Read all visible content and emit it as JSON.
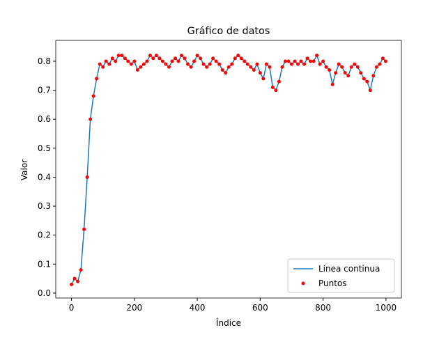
{
  "chart_data": {
    "type": "line",
    "title": "Gráfico de datos",
    "xlabel": "Índice",
    "ylabel": "Valor",
    "x": [
      0,
      10,
      20,
      30,
      40,
      50,
      60,
      70,
      80,
      90,
      100,
      110,
      120,
      130,
      140,
      150,
      160,
      170,
      180,
      190,
      200,
      210,
      220,
      230,
      240,
      250,
      260,
      270,
      280,
      290,
      300,
      310,
      320,
      330,
      340,
      350,
      360,
      370,
      380,
      390,
      400,
      410,
      420,
      430,
      440,
      450,
      460,
      470,
      480,
      490,
      500,
      510,
      520,
      530,
      540,
      550,
      560,
      570,
      580,
      590,
      600,
      610,
      620,
      630,
      640,
      650,
      660,
      670,
      680,
      690,
      700,
      710,
      720,
      730,
      740,
      750,
      760,
      770,
      780,
      790,
      800,
      810,
      820,
      830,
      840,
      850,
      860,
      870,
      880,
      890,
      900,
      910,
      920,
      930,
      940,
      950,
      960,
      970,
      980,
      990,
      999
    ],
    "series": [
      {
        "name": "Línea continua",
        "type": "line",
        "color": "#1f77b4",
        "values": [
          0.03,
          0.05,
          0.04,
          0.08,
          0.22,
          0.4,
          0.6,
          0.68,
          0.74,
          0.79,
          0.78,
          0.8,
          0.79,
          0.81,
          0.8,
          0.82,
          0.82,
          0.81,
          0.8,
          0.79,
          0.8,
          0.77,
          0.78,
          0.79,
          0.8,
          0.82,
          0.81,
          0.82,
          0.81,
          0.8,
          0.79,
          0.78,
          0.8,
          0.81,
          0.8,
          0.82,
          0.81,
          0.79,
          0.78,
          0.8,
          0.82,
          0.81,
          0.79,
          0.78,
          0.79,
          0.81,
          0.8,
          0.79,
          0.77,
          0.76,
          0.78,
          0.79,
          0.81,
          0.82,
          0.81,
          0.8,
          0.79,
          0.78,
          0.77,
          0.79,
          0.76,
          0.74,
          0.79,
          0.78,
          0.71,
          0.7,
          0.73,
          0.78,
          0.8,
          0.8,
          0.79,
          0.8,
          0.79,
          0.8,
          0.79,
          0.81,
          0.8,
          0.8,
          0.82,
          0.79,
          0.8,
          0.78,
          0.77,
          0.72,
          0.76,
          0.79,
          0.78,
          0.76,
          0.75,
          0.78,
          0.79,
          0.78,
          0.76,
          0.74,
          0.73,
          0.7,
          0.75,
          0.78,
          0.79,
          0.81,
          0.8
        ]
      },
      {
        "name": "Puntos",
        "type": "scatter",
        "color": "#ff0000",
        "values": [
          0.03,
          0.05,
          0.04,
          0.08,
          0.22,
          0.4,
          0.6,
          0.68,
          0.74,
          0.79,
          0.78,
          0.8,
          0.79,
          0.81,
          0.8,
          0.82,
          0.82,
          0.81,
          0.8,
          0.79,
          0.8,
          0.77,
          0.78,
          0.79,
          0.8,
          0.82,
          0.81,
          0.82,
          0.81,
          0.8,
          0.79,
          0.78,
          0.8,
          0.81,
          0.8,
          0.82,
          0.81,
          0.79,
          0.78,
          0.8,
          0.82,
          0.81,
          0.79,
          0.78,
          0.79,
          0.81,
          0.8,
          0.79,
          0.77,
          0.76,
          0.78,
          0.79,
          0.81,
          0.82,
          0.81,
          0.8,
          0.79,
          0.78,
          0.77,
          0.79,
          0.76,
          0.74,
          0.79,
          0.78,
          0.71,
          0.7,
          0.73,
          0.78,
          0.8,
          0.8,
          0.79,
          0.8,
          0.79,
          0.8,
          0.79,
          0.81,
          0.8,
          0.8,
          0.82,
          0.79,
          0.8,
          0.78,
          0.77,
          0.72,
          0.76,
          0.79,
          0.78,
          0.76,
          0.75,
          0.78,
          0.79,
          0.78,
          0.76,
          0.74,
          0.73,
          0.7,
          0.75,
          0.78,
          0.79,
          0.81,
          0.8
        ]
      }
    ],
    "xlim": [
      -50,
      1049
    ],
    "xticks": [
      0,
      200,
      400,
      600,
      800,
      1000
    ],
    "ylim": [
      -0.017,
      0.872
    ],
    "yticks": [
      {
        "value": 0,
        "label": "0.0"
      },
      0.1,
      0.2,
      0.3,
      0.4,
      0.5,
      0.6,
      0.7,
      0.8
    ],
    "legend": "lower right"
  }
}
